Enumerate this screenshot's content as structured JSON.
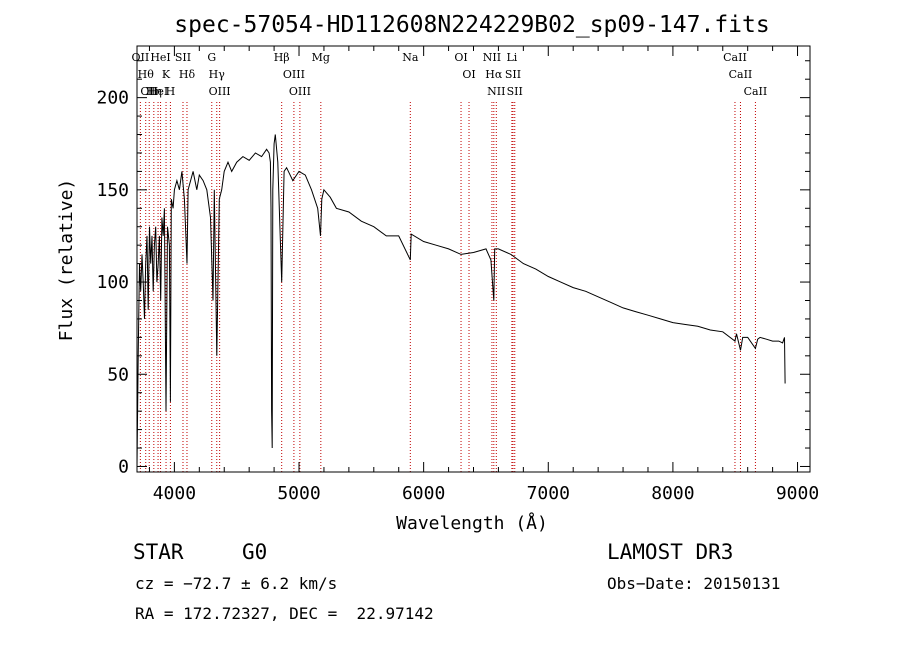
{
  "chart_data": {
    "type": "line",
    "title": "spec-57054-HD112608N224229B02_sp09-147.fits",
    "xlabel": "Wavelength (Å)",
    "ylabel": "Flux (relative)",
    "xlim": [
      3700,
      9100
    ],
    "ylim": [
      -3,
      228
    ],
    "xticks": [
      4000,
      5000,
      6000,
      7000,
      8000,
      9000
    ],
    "yticks": [
      0,
      50,
      100,
      150,
      200
    ],
    "series": [
      {
        "name": "spectrum",
        "x": [
          3700,
          3710,
          3720,
          3730,
          3740,
          3750,
          3760,
          3770,
          3780,
          3790,
          3800,
          3810,
          3820,
          3830,
          3840,
          3850,
          3860,
          3870,
          3880,
          3890,
          3900,
          3910,
          3920,
          3933,
          3945,
          3960,
          3968,
          3975,
          3990,
          4000,
          4020,
          4040,
          4060,
          4080,
          4101,
          4110,
          4130,
          4150,
          4180,
          4200,
          4230,
          4260,
          4290,
          4310,
          4320,
          4340,
          4360,
          4380,
          4400,
          4430,
          4460,
          4500,
          4550,
          4600,
          4650,
          4700,
          4740,
          4760,
          4770,
          4775,
          4780,
          4785,
          4790,
          4800,
          4810,
          4830,
          4861,
          4880,
          4900,
          4950,
          5000,
          5050,
          5100,
          5150,
          5172,
          5183,
          5200,
          5250,
          5300,
          5400,
          5500,
          5600,
          5700,
          5800,
          5893,
          5900,
          6000,
          6100,
          6200,
          6300,
          6400,
          6500,
          6540,
          6563,
          6570,
          6600,
          6700,
          6800,
          6900,
          7000,
          7100,
          7200,
          7300,
          7400,
          7500,
          7600,
          7700,
          7800,
          7900,
          8000,
          8100,
          8200,
          8300,
          8400,
          8498,
          8510,
          8542,
          8560,
          8600,
          8662,
          8680,
          8700,
          8750,
          8800,
          8850,
          8880,
          8895,
          8900
        ],
        "values": [
          0,
          60,
          110,
          95,
          115,
          100,
          80,
          110,
          125,
          85,
          130,
          110,
          125,
          95,
          120,
          130,
          100,
          110,
          125,
          90,
          135,
          125,
          140,
          30,
          130,
          120,
          35,
          145,
          140,
          150,
          155,
          150,
          160,
          145,
          110,
          150,
          155,
          160,
          150,
          158,
          155,
          150,
          135,
          90,
          150,
          60,
          145,
          150,
          160,
          165,
          160,
          165,
          168,
          166,
          170,
          168,
          172,
          170,
          165,
          140,
          30,
          10,
          150,
          175,
          180,
          165,
          100,
          160,
          162,
          155,
          160,
          158,
          150,
          140,
          125,
          145,
          150,
          146,
          140,
          138,
          133,
          130,
          125,
          125,
          112,
          126,
          122,
          120,
          118,
          115,
          116,
          118,
          112,
          90,
          118,
          118,
          115,
          110,
          107,
          103,
          100,
          97,
          95,
          92,
          89,
          86,
          84,
          82,
          80,
          78,
          77,
          76,
          74,
          73,
          68,
          72,
          63,
          70,
          70,
          64,
          69,
          70,
          69,
          68,
          68,
          67,
          70,
          45
        ]
      }
    ],
    "lines": [
      {
        "wl": 3727,
        "label": "OII"
      },
      {
        "wl": 3770,
        "label": "Hθ"
      },
      {
        "wl": 3798,
        "label": "OII"
      },
      {
        "wl": 3835,
        "label": "Hη"
      },
      {
        "wl": 3869,
        "label": "HeI"
      },
      {
        "wl": 3889,
        "label": "HeI"
      },
      {
        "wl": 3933,
        "label": "K"
      },
      {
        "wl": 3968,
        "label": "H"
      },
      {
        "wl": 4069,
        "label": "SII"
      },
      {
        "wl": 4101,
        "label": "Hδ"
      },
      {
        "wl": 4300,
        "label": "G"
      },
      {
        "wl": 4340,
        "label": "Hγ"
      },
      {
        "wl": 4363,
        "label": "OIII"
      },
      {
        "wl": 4861,
        "label": "Hβ"
      },
      {
        "wl": 4959,
        "label": "OIII"
      },
      {
        "wl": 5007,
        "label": "OIII"
      },
      {
        "wl": 5175,
        "label": "Mg"
      },
      {
        "wl": 5893,
        "label": "Na"
      },
      {
        "wl": 6300,
        "label": "OI"
      },
      {
        "wl": 6364,
        "label": "OI"
      },
      {
        "wl": 6548,
        "label": "NII"
      },
      {
        "wl": 6563,
        "label": "Hα"
      },
      {
        "wl": 6583,
        "label": "NII"
      },
      {
        "wl": 6708,
        "label": "Li"
      },
      {
        "wl": 6717,
        "label": "SII"
      },
      {
        "wl": 6731,
        "label": "SII"
      },
      {
        "wl": 8498,
        "label": "CaII"
      },
      {
        "wl": 8542,
        "label": "CaII"
      },
      {
        "wl": 8662,
        "label": "CaII"
      }
    ]
  },
  "info": {
    "class": "STAR",
    "subclass": "G0",
    "survey": "LAMOST DR3",
    "cz": "cz = −72.7 ± 6.2 km/s",
    "obs_date": "Obs−Date: 20150131",
    "radec": "RA = 172.72327, DEC =  22.97142"
  },
  "colors": {
    "line_marker": "#c00000",
    "spectrum": "#000000"
  }
}
